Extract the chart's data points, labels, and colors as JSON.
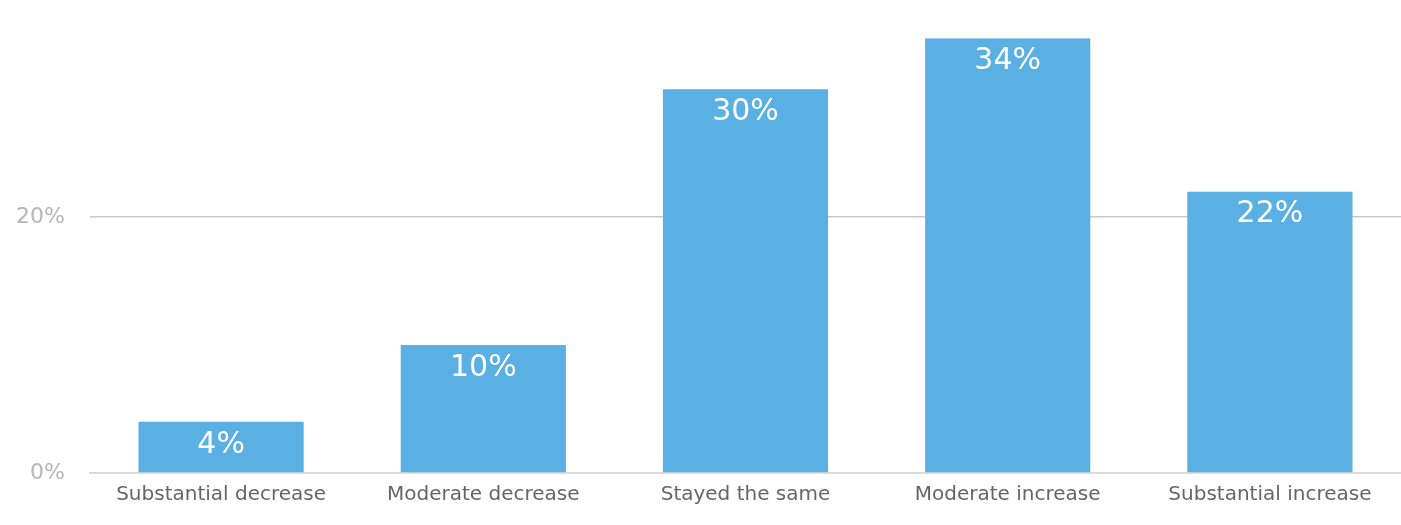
{
  "chart_data": {
    "type": "bar",
    "categories": [
      "Substantial decrease",
      "Moderate decrease",
      "Stayed the same",
      "Moderate increase",
      "Substantial increase"
    ],
    "values": [
      4,
      10,
      30,
      34,
      22
    ],
    "value_labels": [
      "4%",
      "10%",
      "30%",
      "34%",
      "22%"
    ],
    "color": "#5aafe3",
    "ylim": [
      0,
      34
    ],
    "yticks": [
      {
        "value": 0,
        "label": "0%"
      },
      {
        "value": 20,
        "label": "20%"
      }
    ],
    "grid": "y"
  }
}
